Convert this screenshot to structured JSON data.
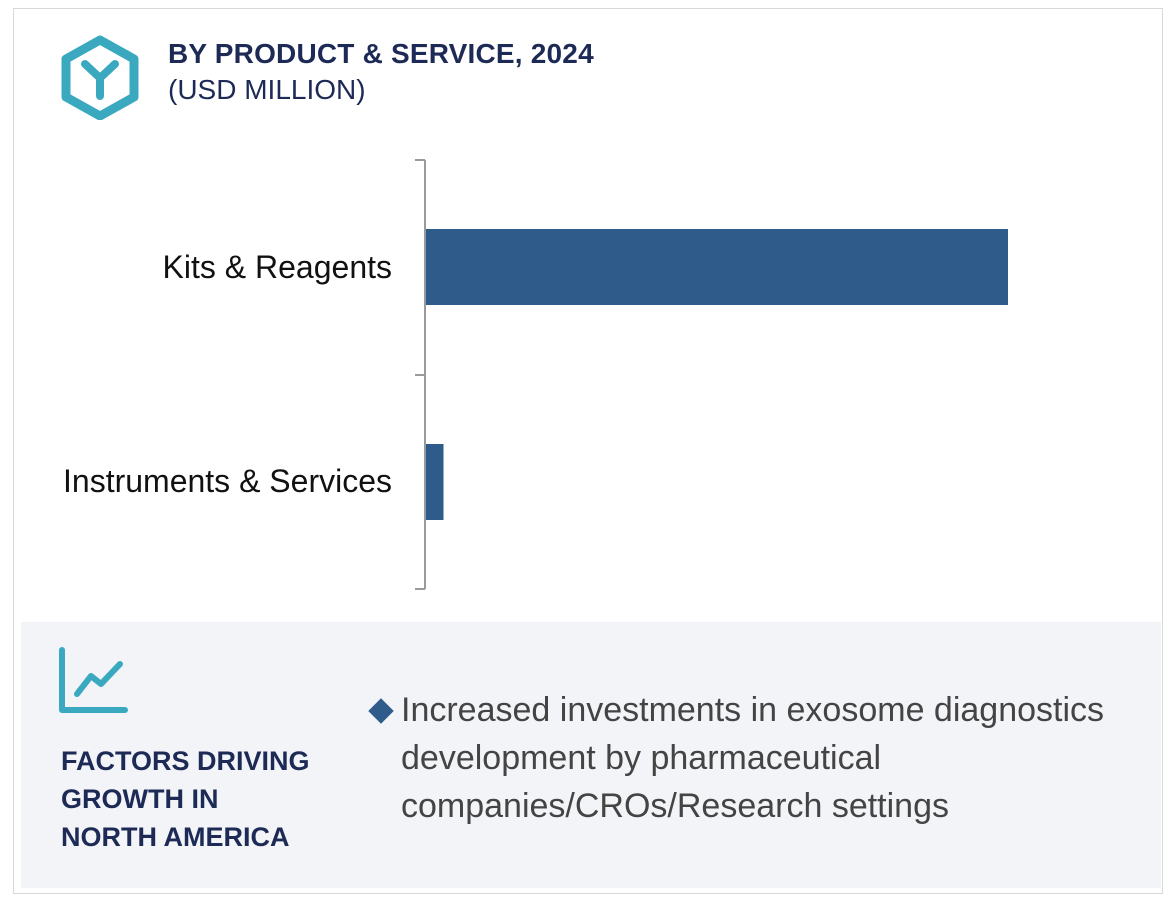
{
  "header": {
    "title": "BY PRODUCT & SERVICE, 2024",
    "subtitle": "(USD MILLION)",
    "logo_icon": "hexagon-y-logo-icon"
  },
  "chart_data": {
    "type": "bar",
    "orientation": "horizontal",
    "title": "BY PRODUCT & SERVICE, 2024",
    "subtitle": "(USD MILLION)",
    "categories": [
      "Kits & Reagents",
      "Instruments & Services"
    ],
    "values": [
      100,
      3
    ],
    "xlim": [
      0,
      100
    ],
    "bar_color": "#2e5b8a",
    "grid": false,
    "legend": "none"
  },
  "factors": {
    "icon": "trend-line-chart-icon",
    "title_lines": [
      "FACTORS DRIVING",
      "GROWTH IN",
      "NORTH AMERICA"
    ],
    "items": [
      {
        "lines": [
          "Increased investments in exosome diagnostics",
          "development by pharmaceutical",
          "companies/CROs/Research settings"
        ]
      }
    ]
  },
  "colors": {
    "accent": "#3aa9c0",
    "navy": "#1c2a55",
    "bar": "#2e5b8a",
    "panel_bg": "#f3f4f8"
  }
}
